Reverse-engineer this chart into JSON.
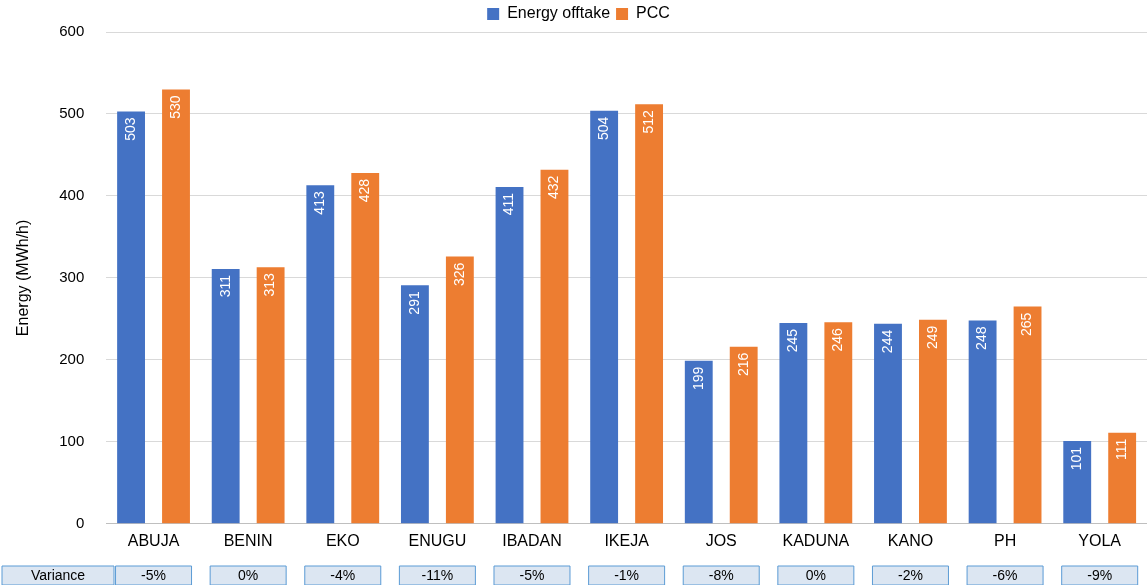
{
  "chart_data": {
    "type": "bar",
    "ylabel": "Energy (MWh/h)",
    "categories": [
      "ABUJA",
      "BENIN",
      "EKO",
      "ENUGU",
      "IBADAN",
      "IKEJA",
      "JOS",
      "KADUNA",
      "KANO",
      "PH",
      "YOLA"
    ],
    "series": [
      {
        "name": "Energy offtake",
        "color": "#4472c4",
        "values": [
          503,
          311,
          413,
          291,
          411,
          504,
          199,
          245,
          244,
          248,
          101
        ]
      },
      {
        "name": "PCC",
        "color": "#ed7d31",
        "values": [
          530,
          313,
          428,
          326,
          432,
          512,
          216,
          246,
          249,
          265,
          111
        ]
      }
    ],
    "ylim": [
      0,
      600
    ],
    "yticks": [
      0,
      100,
      200,
      300,
      400,
      500,
      600
    ],
    "grid": "y",
    "legend": "top",
    "data_labels": true,
    "annotations": [
      "Variance",
      "-5%",
      "0%",
      "-4%",
      "-11%",
      "-5%",
      "-1%",
      "-8%",
      "0%",
      "-2%",
      "-6%",
      "-9%"
    ]
  }
}
